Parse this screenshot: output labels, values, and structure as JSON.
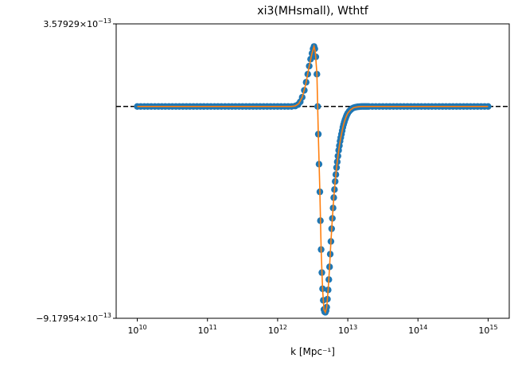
{
  "chart_data": {
    "type": "scatter",
    "title": "xi3(MHsmall), Wthtf",
    "xlabel": "k [Mpc⁻¹]",
    "ylabel": "",
    "xscale": "log",
    "xlim": [
      5000000000.0,
      2000000000000000.0
    ],
    "ylim": [
      -9.17954e-13,
      3.57929e-13
    ],
    "x_ticks": [
      {
        "value": 10000000000.0,
        "base": "10",
        "exp": "10"
      },
      {
        "value": 100000000000.0,
        "base": "10",
        "exp": "11"
      },
      {
        "value": 1000000000000.0,
        "base": "10",
        "exp": "12"
      },
      {
        "value": 10000000000000.0,
        "base": "10",
        "exp": "13"
      },
      {
        "value": 100000000000000.0,
        "base": "10",
        "exp": "14"
      },
      {
        "value": 1000000000000000.0,
        "base": "10",
        "exp": "15"
      }
    ],
    "y_ticks": [
      {
        "value": 3.57929e-13,
        "mantissa": "3.57929",
        "times": "×10",
        "exp": "−13"
      },
      {
        "value": -9.17954e-13,
        "mantissa": "−9.17954",
        "times": "×10",
        "exp": "−13"
      }
    ],
    "grid": false,
    "legend": "none",
    "reference_line": {
      "y": 0,
      "style": "dashed",
      "color": "#000000"
    },
    "series": [
      {
        "kind": "points",
        "color": "#1f77b4",
        "points": [
          [
            10000000000.0,
            0
          ],
          [
            11200000000.0,
            0
          ],
          [
            12600000000.0,
            0
          ],
          [
            14100000000.0,
            0
          ],
          [
            15800000000.0,
            0
          ],
          [
            17800000000.0,
            0
          ],
          [
            20000000000.0,
            0
          ],
          [
            22400000000.0,
            0
          ],
          [
            25100000000.0,
            0
          ],
          [
            28200000000.0,
            0
          ],
          [
            31600000000.0,
            0
          ],
          [
            35500000000.0,
            0
          ],
          [
            39800000000.0,
            0
          ],
          [
            44700000000.0,
            0
          ],
          [
            50100000000.0,
            0
          ],
          [
            56200000000.0,
            0
          ],
          [
            63100000000.0,
            0
          ],
          [
            70800000000.0,
            0
          ],
          [
            79400000000.0,
            0
          ],
          [
            89100000000.0,
            0
          ],
          [
            100000000000.0,
            0
          ],
          [
            112000000000.0,
            0
          ],
          [
            126000000000.0,
            0
          ],
          [
            141000000000.0,
            0
          ],
          [
            158000000000.0,
            0
          ],
          [
            178000000000.0,
            0
          ],
          [
            200000000000.0,
            0
          ],
          [
            224000000000.0,
            0
          ],
          [
            251000000000.0,
            0
          ],
          [
            282000000000.0,
            0
          ],
          [
            316000000000.0,
            0
          ],
          [
            355000000000.0,
            0
          ],
          [
            398000000000.0,
            0
          ],
          [
            447000000000.0,
            0
          ],
          [
            501000000000.0,
            0
          ],
          [
            562000000000.0,
            0
          ],
          [
            631000000000.0,
            0
          ],
          [
            708000000000.0,
            0
          ],
          [
            794000000000.0,
            0
          ],
          [
            891000000000.0,
            0
          ],
          [
            1000000000000.0,
            0
          ],
          [
            1120000000000.0,
            0
          ],
          [
            1260000000000.0,
            0
          ],
          [
            1410000000000.0,
            0
          ],
          [
            1580000000000.0,
            0
          ],
          [
            1780000000000.0,
            2e-15
          ],
          [
            1950000000000.0,
            8e-15
          ],
          [
            2100000000000.0,
            2e-14
          ],
          [
            2240000000000.0,
            4e-14
          ],
          [
            2400000000000.0,
            7e-14
          ],
          [
            2550000000000.0,
            1.05e-13
          ],
          [
            2690000000000.0,
            1.4e-13
          ],
          [
            2820000000000.0,
            1.75e-13
          ],
          [
            2950000000000.0,
            2.05e-13
          ],
          [
            3090000000000.0,
            2.3e-13
          ],
          [
            3200000000000.0,
            2.5e-13
          ],
          [
            3300000000000.0,
            2.6e-13
          ],
          [
            3390000000000.0,
            2.5e-13
          ],
          [
            3500000000000.0,
            2.15e-13
          ],
          [
            3630000000000.0,
            1.4e-13
          ],
          [
            3720000000000.0,
            0
          ],
          [
            3800000000000.0,
            -1.2e-13
          ],
          [
            3890000000000.0,
            -2.5e-13
          ],
          [
            4000000000000.0,
            -3.7e-13
          ],
          [
            4070000000000.0,
            -4.95e-13
          ],
          [
            4170000000000.0,
            -6.2e-13
          ],
          [
            4270000000000.0,
            -7.2e-13
          ],
          [
            4370000000000.0,
            -7.9e-13
          ],
          [
            4470000000000.0,
            -8.4e-13
          ],
          [
            4570000000000.0,
            -8.8e-13
          ],
          [
            4680000000000.0,
            -8.9e-13
          ],
          [
            4790000000000.0,
            -8.92e-13
          ],
          [
            4900000000000.0,
            -8.85e-13
          ],
          [
            5010000000000.0,
            -8.7e-13
          ],
          [
            5130000000000.0,
            -8.35e-13
          ],
          [
            5250000000000.0,
            -7.95e-13
          ],
          [
            5370000000000.0,
            -7.5e-13
          ],
          [
            5500000000000.0,
            -6.95e-13
          ],
          [
            5620000000000.0,
            -6.4e-13
          ],
          [
            5750000000000.0,
            -5.85e-13
          ],
          [
            5890000000000.0,
            -5.3e-13
          ],
          [
            6030000000000.0,
            -4.85e-13
          ],
          [
            6170000000000.0,
            -4.4e-13
          ],
          [
            6310000000000.0,
            -3.95e-13
          ],
          [
            6460000000000.0,
            -3.6e-13
          ],
          [
            6610000000000.0,
            -3.25e-13
          ],
          [
            6760000000000.0,
            -2.95e-13
          ],
          [
            6920000000000.0,
            -2.65e-13
          ],
          [
            7080000000000.0,
            -2.4e-13
          ],
          [
            7240000000000.0,
            -2.15e-13
          ],
          [
            7410000000000.0,
            -1.9e-13
          ],
          [
            7590000000000.0,
            -1.7e-13
          ],
          [
            7760000000000.0,
            -1.5e-13
          ],
          [
            7940000000000.0,
            -1.35e-13
          ],
          [
            8130000000000.0,
            -1.2e-13
          ],
          [
            8320000000000.0,
            -1.05e-13
          ],
          [
            8510000000000.0,
            -9e-14
          ],
          [
            8710000000000.0,
            -7.8e-14
          ],
          [
            8910000000000.0,
            -6.8e-14
          ],
          [
            9120000000000.0,
            -5.8e-14
          ],
          [
            9330000000000.0,
            -5e-14
          ],
          [
            9550000000000.0,
            -4.2e-14
          ],
          [
            9770000000000.0,
            -3.5e-14
          ],
          [
            10000000000000.0,
            -2.9e-14
          ],
          [
            10500000000000.0,
            -2e-14
          ],
          [
            11000000000000.0,
            -1.4e-14
          ],
          [
            11500000000000.0,
            -9e-15
          ],
          [
            12000000000000.0,
            -6e-15
          ],
          [
            12600000000000.0,
            -4e-15
          ],
          [
            13200000000000.0,
            -2.5e-15
          ],
          [
            13800000000000.0,
            -1.5e-15
          ],
          [
            14500000000000.0,
            -1e-15
          ],
          [
            15100000000000.0,
            -5e-16
          ],
          [
            15800000000000.0,
            0
          ],
          [
            16600000000000.0,
            0
          ],
          [
            17400000000000.0,
            0
          ],
          [
            18200000000000.0,
            0
          ],
          [
            19100000000000.0,
            0
          ],
          [
            20000000000000.0,
            0
          ],
          [
            22400000000000.0,
            0
          ],
          [
            25100000000000.0,
            0
          ],
          [
            28200000000000.0,
            0
          ],
          [
            31600000000000.0,
            0
          ],
          [
            35500000000000.0,
            0
          ],
          [
            39800000000000.0,
            0
          ],
          [
            44700000000000.0,
            0
          ],
          [
            50100000000000.0,
            0
          ],
          [
            56200000000000.0,
            0
          ],
          [
            63100000000000.0,
            0
          ],
          [
            70800000000000.0,
            0
          ],
          [
            79400000000000.0,
            0
          ],
          [
            89100000000000.0,
            0
          ],
          [
            100000000000000.0,
            0
          ],
          [
            112000000000000.0,
            0
          ],
          [
            126000000000000.0,
            0
          ],
          [
            141000000000000.0,
            0
          ],
          [
            158000000000000.0,
            0
          ],
          [
            178000000000000.0,
            0
          ],
          [
            200000000000000.0,
            0
          ],
          [
            224000000000000.0,
            0
          ],
          [
            251000000000000.0,
            0
          ],
          [
            282000000000000.0,
            0
          ],
          [
            316000000000000.0,
            0
          ],
          [
            355000000000000.0,
            0
          ],
          [
            398000000000000.0,
            0
          ],
          [
            447000000000000.0,
            0
          ],
          [
            501000000000000.0,
            0
          ],
          [
            562000000000000.0,
            0
          ],
          [
            631000000000000.0,
            0
          ],
          [
            708000000000000.0,
            0
          ],
          [
            794000000000000.0,
            0
          ],
          [
            891000000000000.0,
            0
          ],
          [
            1000000000000000.0,
            0
          ]
        ]
      },
      {
        "kind": "line",
        "color": "#ff7f0e",
        "points": [
          [
            10000000000.0,
            0
          ],
          [
            1000000000000.0,
            0
          ],
          [
            1580000000000.0,
            0
          ],
          [
            1780000000000.0,
            2e-15
          ],
          [
            2000000000000.0,
            1.2e-14
          ],
          [
            2240000000000.0,
            4e-14
          ],
          [
            2510000000000.0,
            9.5e-14
          ],
          [
            2820000000000.0,
            1.75e-13
          ],
          [
            3090000000000.0,
            2.3e-13
          ],
          [
            3300000000000.0,
            2.6e-13
          ],
          [
            3450000000000.0,
            2.35e-13
          ],
          [
            3630000000000.0,
            1.4e-13
          ],
          [
            3800000000000.0,
            -1.2e-13
          ],
          [
            4000000000000.0,
            -3.7e-13
          ],
          [
            4170000000000.0,
            -6.2e-13
          ],
          [
            4370000000000.0,
            -7.9e-13
          ],
          [
            4570000000000.0,
            -8.8e-13
          ],
          [
            4790000000000.0,
            -8.92e-13
          ],
          [
            5010000000000.0,
            -8.7e-13
          ],
          [
            5250000000000.0,
            -7.95e-13
          ],
          [
            5500000000000.0,
            -6.95e-13
          ],
          [
            5750000000000.0,
            -5.85e-13
          ],
          [
            6030000000000.0,
            -4.85e-13
          ],
          [
            6310000000000.0,
            -3.95e-13
          ],
          [
            6610000000000.0,
            -3.25e-13
          ],
          [
            6920000000000.0,
            -2.65e-13
          ],
          [
            7240000000000.0,
            -2.15e-13
          ],
          [
            7590000000000.0,
            -1.7e-13
          ],
          [
            7940000000000.0,
            -1.35e-13
          ],
          [
            8320000000000.0,
            -1.05e-13
          ],
          [
            8710000000000.0,
            -7.8e-14
          ],
          [
            9120000000000.0,
            -5.8e-14
          ],
          [
            9550000000000.0,
            -4.2e-14
          ],
          [
            10000000000000.0,
            -2.9e-14
          ],
          [
            11000000000000.0,
            -1.4e-14
          ],
          [
            12000000000000.0,
            -6e-15
          ],
          [
            13200000000000.0,
            -2.5e-15
          ],
          [
            14500000000000.0,
            -1e-15
          ],
          [
            15800000000000.0,
            0
          ],
          [
            1000000000000000.0,
            0
          ]
        ]
      }
    ]
  }
}
